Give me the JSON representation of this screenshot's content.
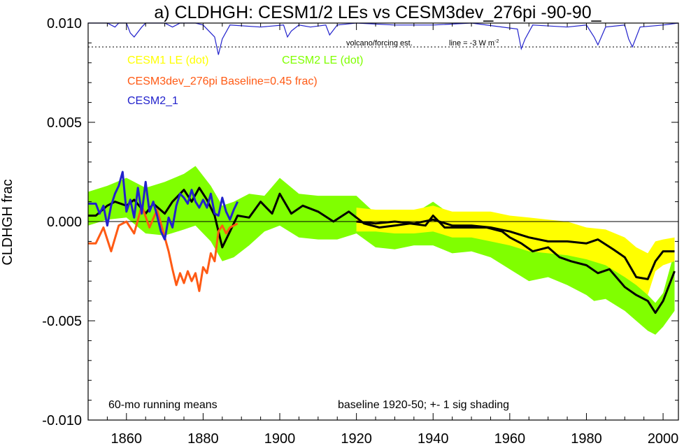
{
  "chart_data": {
    "type": "line",
    "title": "a) CLDHGH: CESM1/2 LEs vs CESM3dev_276pi -90-90_",
    "ylabel": "CLDHGH frac",
    "xlabel": "",
    "xlim": [
      1850,
      2004
    ],
    "ylim": [
      -0.01,
      0.01
    ],
    "x_ticks": [
      1860,
      1880,
      1900,
      1920,
      1940,
      1960,
      1980,
      2000
    ],
    "y_ticks": [
      "0.010",
      "0.005",
      "0.000",
      "-0.005",
      "-0.010"
    ],
    "y_tick_values": [
      0.01,
      0.005,
      0.0,
      -0.005,
      -0.01
    ],
    "zero_line": true,
    "grid": false,
    "legend_placement": "top-left",
    "legend": [
      {
        "label": "CESM1 LE (dot)",
        "color": "#ffff00"
      },
      {
        "label": "CESM2 LE (dot)",
        "color": "#80ff00"
      },
      {
        "label": "CESM3dev_276pi Baseline=0.45 frac)",
        "color": "#ff5a14"
      },
      {
        "label": "CESM2_1",
        "color": "#2222cc"
      }
    ],
    "annotations": {
      "volcano": "volcano/forcing est.",
      "volcano_line": "line = -3 W m",
      "volcano_line_sup": "-2",
      "running_means": "60-mo running means",
      "baseline": "baseline 1920-50; +- 1 sig shading"
    },
    "colors": {
      "cesm1_band": "#ffff00",
      "cesm2_band": "#80ff00",
      "ensemble_mean": "#000000",
      "cesm3dev": "#ff5a14",
      "cesm2_1": "#2222cc",
      "volcano": "#2222cc"
    },
    "volcano_reference_y": 0.0088,
    "volcano_forcing": {
      "baseline_y": 0.01,
      "x": [
        1850,
        1855,
        1857,
        1858,
        1860,
        1861,
        1862,
        1864,
        1865,
        1870,
        1872,
        1874,
        1878,
        1880,
        1883,
        1884,
        1885,
        1887,
        1895,
        1901,
        1902,
        1903,
        1905,
        1908,
        1912,
        1913,
        1915,
        1920,
        1930,
        1940,
        1950,
        1962,
        1963,
        1964,
        1966,
        1975,
        1980,
        1982,
        1983,
        1985,
        1990,
        1991,
        1992,
        1994,
        2000,
        2004
      ],
      "y": [
        0.01,
        0.01,
        0.0098,
        0.01,
        0.01,
        0.0095,
        0.0093,
        0.0098,
        0.01,
        0.01,
        0.0098,
        0.01,
        0.01,
        0.0099,
        0.0093,
        0.0084,
        0.0092,
        0.0099,
        0.0098,
        0.0099,
        0.0093,
        0.0096,
        0.0099,
        0.0098,
        0.0099,
        0.0094,
        0.0099,
        0.01,
        0.0099,
        0.0099,
        0.01,
        0.0097,
        0.0087,
        0.0092,
        0.0099,
        0.0098,
        0.0099,
        0.0093,
        0.0089,
        0.0098,
        0.0099,
        0.0092,
        0.0088,
        0.0098,
        0.0099,
        0.01
      ]
    },
    "series": [
      {
        "name": "CESM2 LE (dot)",
        "kind": "band",
        "x": [
          1850,
          1855,
          1860,
          1865,
          1870,
          1875,
          1878,
          1882,
          1885,
          1888,
          1892,
          1896,
          1900,
          1905,
          1910,
          1915,
          1920,
          1925,
          1930,
          1935,
          1940,
          1945,
          1950,
          1955,
          1960,
          1965,
          1970,
          1975,
          1980,
          1982,
          1985,
          1990,
          1993,
          1996,
          1998,
          2000,
          2003
        ],
        "upper": [
          0.0015,
          0.0018,
          0.0022,
          0.0017,
          0.002,
          0.0024,
          0.0028,
          0.0018,
          0.0008,
          0.001,
          0.0014,
          0.0013,
          0.0022,
          0.0014,
          0.0013,
          0.0013,
          0.0013,
          0.0004,
          0.0003,
          0.0004,
          0.001,
          0.0003,
          0.0002,
          0.0003,
          0.0001,
          -0.0004,
          -0.0007,
          -0.0008,
          -0.0014,
          -0.0017,
          -0.0019,
          -0.0026,
          -0.0031,
          -0.0037,
          -0.0041,
          -0.0036,
          -0.0015
        ],
        "lower": [
          -0.0002,
          0.0001,
          0.0002,
          -0.0006,
          -0.0007,
          -0.0004,
          -0.0002,
          -0.001,
          -0.002,
          -0.0018,
          -0.0012,
          -0.0005,
          -0.0002,
          -0.0008,
          -0.0009,
          -0.0009,
          -0.0006,
          -0.0013,
          -0.0014,
          -0.0012,
          -0.0012,
          -0.0016,
          -0.0015,
          -0.0018,
          -0.0024,
          -0.003,
          -0.0028,
          -0.0032,
          -0.0037,
          -0.004,
          -0.0039,
          -0.0045,
          -0.005,
          -0.0055,
          -0.0057,
          -0.0053,
          -0.0045
        ]
      },
      {
        "name": "CESM1 LE (dot)",
        "kind": "band",
        "x": [
          1920,
          1925,
          1930,
          1935,
          1940,
          1945,
          1950,
          1955,
          1960,
          1965,
          1970,
          1975,
          1980,
          1985,
          1990,
          1993,
          1996,
          1998,
          2000,
          2003
        ],
        "upper": [
          0.0007,
          0.0006,
          0.0006,
          0.0006,
          0.0008,
          0.0005,
          0.0005,
          0.0005,
          0.0003,
          0.0002,
          0.0001,
          0.0,
          -0.0003,
          -0.0004,
          -0.0008,
          -0.0013,
          -0.0016,
          -0.001,
          -0.0009,
          -0.0008
        ],
        "lower": [
          -0.0005,
          -0.0005,
          -0.0006,
          -0.0006,
          -0.0005,
          -0.0008,
          -0.0008,
          -0.001,
          -0.0012,
          -0.0015,
          -0.0016,
          -0.0017,
          -0.0019,
          -0.0022,
          -0.0028,
          -0.0032,
          -0.0037,
          -0.0025,
          -0.0022,
          -0.002
        ]
      },
      {
        "name": "CESM1 LE mean",
        "kind": "line",
        "x": [
          1920,
          1925,
          1930,
          1935,
          1940,
          1945,
          1950,
          1955,
          1960,
          1965,
          1970,
          1975,
          1980,
          1983,
          1987,
          1990,
          1993,
          1996,
          1998,
          2000,
          2003
        ],
        "y": [
          0.0,
          -0.0001,
          0.0,
          -0.0001,
          0.0001,
          -0.0002,
          -0.0002,
          -0.0003,
          -0.0005,
          -0.0008,
          -0.001,
          -0.001,
          -0.0011,
          -0.0009,
          -0.0014,
          -0.0018,
          -0.0028,
          -0.0029,
          -0.002,
          -0.0015,
          -0.0015
        ]
      },
      {
        "name": "CESM2 LE mean",
        "kind": "line",
        "x": [
          1850,
          1852,
          1855,
          1857,
          1860,
          1862,
          1865,
          1867,
          1870,
          1872,
          1875,
          1877,
          1879,
          1881,
          1883,
          1885,
          1887,
          1889,
          1892,
          1895,
          1898,
          1900,
          1903,
          1906,
          1910,
          1914,
          1918,
          1922,
          1926,
          1930,
          1934,
          1938,
          1940,
          1943,
          1947,
          1950,
          1954,
          1958,
          1960,
          1963,
          1966,
          1970,
          1973,
          1976,
          1980,
          1983,
          1986,
          1990,
          1993,
          1996,
          1998,
          2000,
          2003
        ],
        "y": [
          0.0003,
          0.0003,
          0.0008,
          0.001,
          0.0008,
          0.0011,
          0.0004,
          0.0009,
          0.0004,
          0.001,
          0.0016,
          0.001,
          0.0017,
          0.0011,
          0.0003,
          -0.0013,
          -0.0005,
          0.0003,
          0.0002,
          0.001,
          0.0004,
          0.0014,
          0.0004,
          0.0008,
          0.0005,
          0.0,
          0.0005,
          -0.0001,
          -0.0003,
          -0.0002,
          -0.0001,
          -0.0002,
          0.0003,
          -0.0003,
          -0.0003,
          -0.0003,
          -0.0003,
          -0.0005,
          -0.0008,
          -0.0011,
          -0.0015,
          -0.0013,
          -0.0018,
          -0.002,
          -0.0022,
          -0.0026,
          -0.0024,
          -0.0033,
          -0.0037,
          -0.004,
          -0.0046,
          -0.004,
          -0.0025
        ]
      },
      {
        "name": "CESM3dev_276pi",
        "kind": "line",
        "x": [
          1850,
          1852,
          1854,
          1856,
          1858,
          1860,
          1862,
          1864,
          1866,
          1868,
          1870,
          1871,
          1872,
          1873,
          1874,
          1875,
          1876,
          1877,
          1878,
          1879,
          1880,
          1881,
          1882,
          1883,
          1884,
          1885,
          1886,
          1887,
          1888,
          1889
        ],
        "y": [
          -0.0011,
          -0.0011,
          -0.0003,
          -0.0015,
          -0.0002,
          0.0,
          -0.0006,
          0.0008,
          -0.0003,
          0.0006,
          -0.0008,
          -0.0015,
          -0.0024,
          -0.0032,
          -0.0026,
          -0.0031,
          -0.0025,
          -0.003,
          -0.0026,
          -0.0035,
          -0.0023,
          -0.0026,
          -0.0016,
          -0.002,
          -0.0005,
          -0.0002,
          -0.0006,
          -0.0003,
          -0.0002,
          -0.0001
        ]
      },
      {
        "name": "CESM2_1",
        "kind": "line",
        "x": [
          1850,
          1852,
          1853,
          1854,
          1855,
          1856,
          1857,
          1858,
          1859,
          1860,
          1861,
          1862,
          1863,
          1864,
          1865,
          1866,
          1867,
          1868,
          1869,
          1870,
          1871,
          1872,
          1873,
          1874,
          1875,
          1876,
          1877,
          1878,
          1879,
          1880,
          1881,
          1882,
          1883,
          1884,
          1885,
          1886,
          1887,
          1888,
          1889
        ],
        "y": [
          0.0009,
          0.0009,
          0.0004,
          0.0008,
          -0.0002,
          0.0008,
          0.0014,
          0.0018,
          0.0025,
          0.0005,
          0.0011,
          0.0002,
          0.0017,
          0.0004,
          0.002,
          0.0005,
          0.001,
          0.0003,
          -0.0005,
          -0.0009,
          0.0002,
          -0.0003,
          0.0008,
          0.0014,
          0.0012,
          0.0009,
          0.0016,
          0.001,
          0.0007,
          0.0011,
          0.0007,
          0.0014,
          0.0004,
          0.0003,
          0.0012,
          0.0005,
          0.0001,
          0.0006,
          0.001
        ]
      }
    ]
  }
}
